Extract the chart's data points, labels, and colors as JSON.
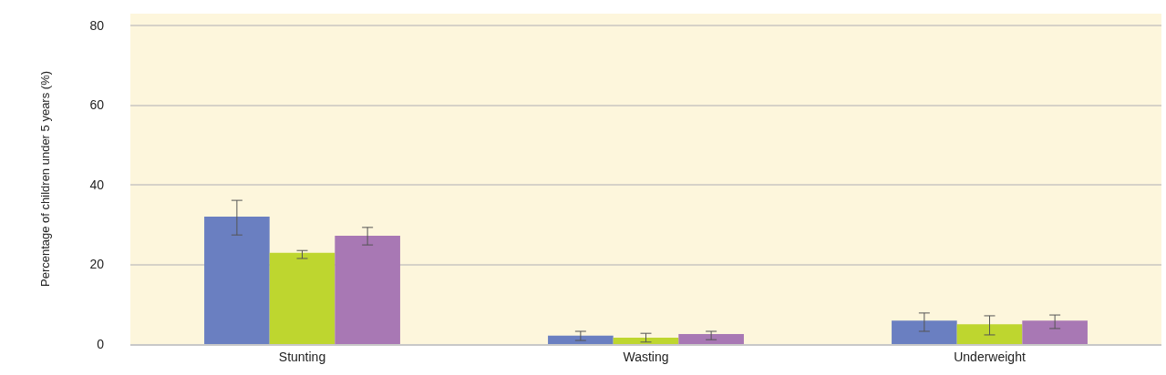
{
  "chart_data": {
    "type": "bar",
    "ylabel": "Percentage of children under 5 years (%)",
    "categories": [
      "Stunting",
      "Wasting",
      "Underweight"
    ],
    "series": [
      {
        "color": "#6a7fc1",
        "values": [
          32.0,
          2.1,
          5.9
        ],
        "errors": [
          [
            27.4,
            36.1
          ],
          [
            0.9,
            3.2
          ],
          [
            3.2,
            7.8
          ]
        ]
      },
      {
        "color": "#bed62f",
        "values": [
          22.9,
          1.6,
          5.0
        ],
        "errors": [
          [
            21.5,
            23.5
          ],
          [
            0.5,
            2.7
          ],
          [
            2.3,
            7.1
          ]
        ]
      },
      {
        "color": "#a878b4",
        "values": [
          27.2,
          2.5,
          5.9
        ],
        "errors": [
          [
            24.9,
            29.3
          ],
          [
            1.1,
            3.2
          ],
          [
            3.9,
            7.3
          ]
        ]
      }
    ],
    "ylim": [
      0,
      83
    ],
    "yticks": [
      0,
      20,
      40,
      60,
      80
    ],
    "grid": "y"
  }
}
